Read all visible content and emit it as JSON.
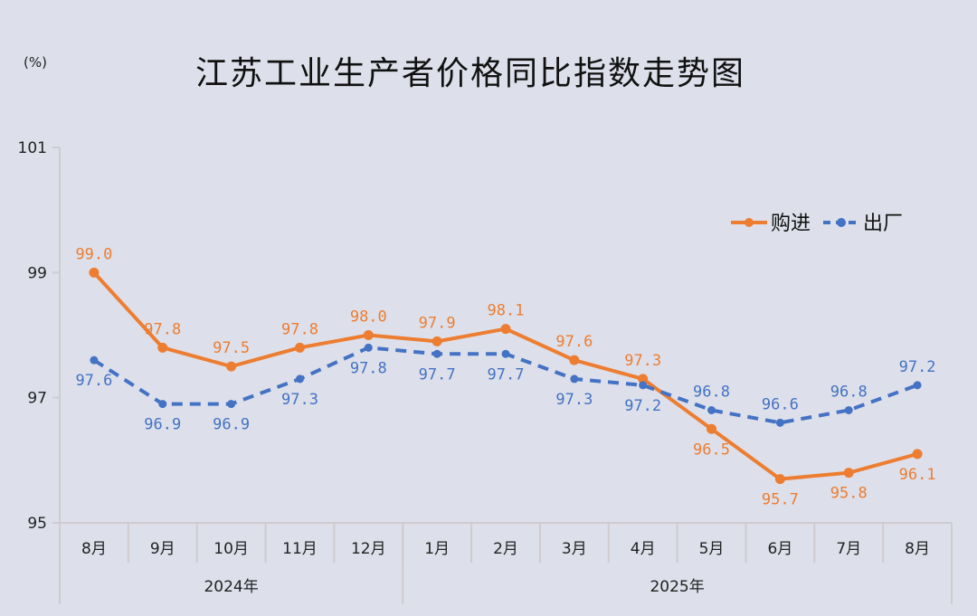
{
  "chart_data": {
    "type": "line",
    "title": "江苏工业生产者价格同比指数走势图",
    "unit_label": "(%)",
    "categories": [
      "8月",
      "9月",
      "10月",
      "11月",
      "12月",
      "1月",
      "2月",
      "3月",
      "4月",
      "5月",
      "6月",
      "7月",
      "8月"
    ],
    "year_groups": [
      {
        "label": "2024年",
        "count": 5
      },
      {
        "label": "2025年",
        "count": 8
      }
    ],
    "ylim": [
      95,
      101
    ],
    "yticks": [
      95,
      97,
      99,
      101
    ],
    "grid": false,
    "legend": "top-right",
    "series": [
      {
        "name": "购进",
        "color": "#ED7D31",
        "style": "solid",
        "values": [
          99.0,
          97.8,
          97.5,
          97.8,
          98.0,
          97.9,
          98.1,
          97.6,
          97.3,
          96.5,
          95.7,
          95.8,
          96.1
        ]
      },
      {
        "name": "出厂",
        "color": "#4472C4",
        "style": "dashed",
        "values": [
          97.6,
          96.9,
          96.9,
          97.3,
          97.8,
          97.7,
          97.7,
          97.3,
          97.2,
          96.8,
          96.6,
          96.8,
          97.2
        ]
      }
    ]
  }
}
